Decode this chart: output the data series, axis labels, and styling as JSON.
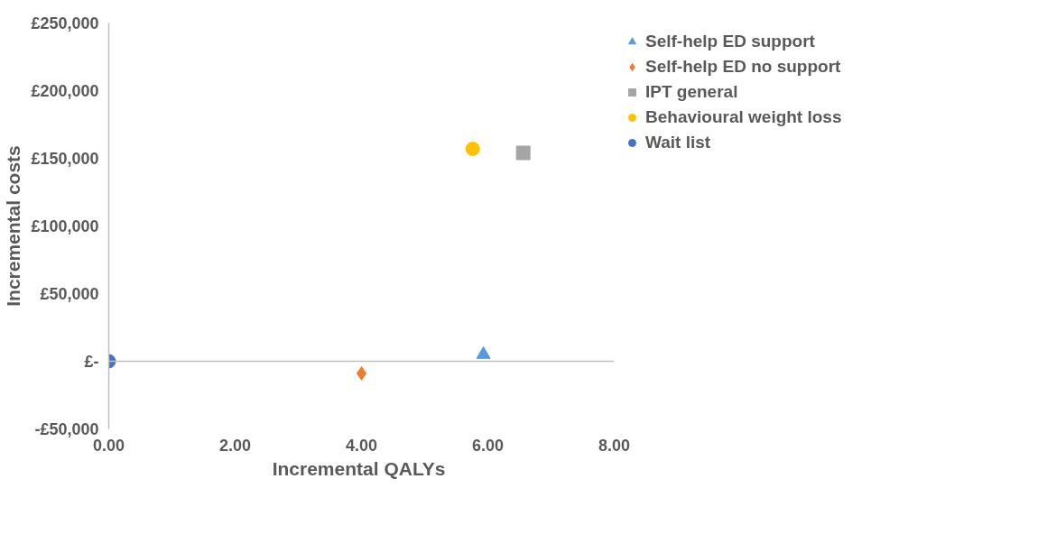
{
  "chart_data": {
    "type": "scatter",
    "xlabel": "Incremental  QALYs",
    "ylabel": "Incremental costs",
    "xlim": [
      0,
      8
    ],
    "xticks": [
      {
        "value": 0,
        "label": "0.00"
      },
      {
        "value": 2,
        "label": "2.00"
      },
      {
        "value": 4,
        "label": "4.00"
      },
      {
        "value": 6,
        "label": "6.00"
      },
      {
        "value": 8,
        "label": "8.00"
      }
    ],
    "ylim": [
      -50000,
      250000
    ],
    "yticks": [
      {
        "value": -50000,
        "label": "-£50,000"
      },
      {
        "value": 0,
        "label": "£-"
      },
      {
        "value": 50000,
        "label": "£50,000"
      },
      {
        "value": 100000,
        "label": "£100,000"
      },
      {
        "value": 150000,
        "label": "£150,000"
      },
      {
        "value": 200000,
        "label": "£200,000"
      },
      {
        "value": 250000,
        "label": "£250,000"
      }
    ],
    "legend": "right",
    "series": [
      {
        "name": "Self-help ED support",
        "color": "#5b9bd5",
        "marker": "triangle",
        "x": [
          5.93
        ],
        "values": [
          5000
        ]
      },
      {
        "name": "Self-help ED no support",
        "color": "#ed7d31",
        "marker": "diamond",
        "x": [
          4.0
        ],
        "values": [
          -9000
        ]
      },
      {
        "name": "IPT general",
        "color": "#a5a5a5",
        "marker": "square",
        "x": [
          6.56
        ],
        "values": [
          154000
        ]
      },
      {
        "name": "Behavioural weight loss",
        "color": "#ffc000",
        "marker": "circle",
        "x": [
          5.76
        ],
        "values": [
          157000
        ]
      },
      {
        "name": "Wait list",
        "color": "#4472c4",
        "marker": "circle",
        "x": [
          0.0
        ],
        "values": [
          0
        ]
      }
    ]
  }
}
